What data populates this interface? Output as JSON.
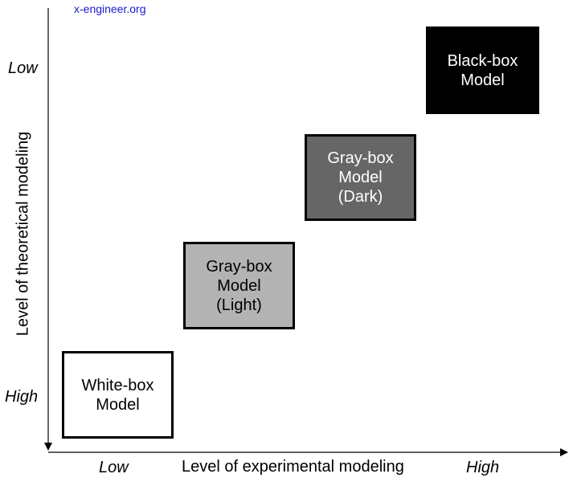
{
  "watermark": "x-engineer.org",
  "y_axis": {
    "title": "Level of theoretical modeling",
    "top_label": "Low",
    "bottom_label": "High"
  },
  "x_axis": {
    "title": "Level of experimental modeling",
    "left_label": "Low",
    "right_label": "High"
  },
  "boxes": [
    {
      "lines": [
        "White-box",
        "Model"
      ],
      "fill": "#ffffff",
      "text_color": "#000000"
    },
    {
      "lines": [
        "Gray-box",
        "Model",
        "(Light)"
      ],
      "fill": "#b3b3b3",
      "text_color": "#000000"
    },
    {
      "lines": [
        "Gray-box",
        "Model",
        "(Dark)"
      ],
      "fill": "#666666",
      "text_color": "#ffffff"
    },
    {
      "lines": [
        "Black-box",
        "Model"
      ],
      "fill": "#000000",
      "text_color": "#ffffff"
    }
  ]
}
